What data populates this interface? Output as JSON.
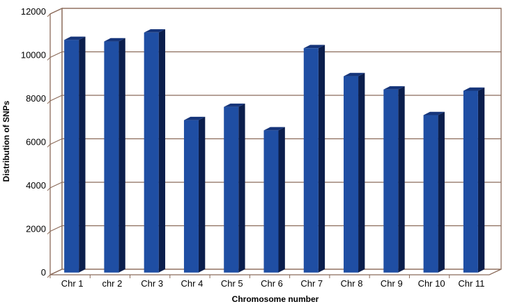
{
  "chart_data": {
    "type": "bar",
    "title": "",
    "xlabel": "Chromosome number",
    "ylabel": "Distribution of SNPs",
    "categories": [
      "Chr 1",
      "chr 2",
      "Chr 3",
      "Chr 4",
      "Chr 5",
      "Chr 6",
      "Chr 7",
      "Chr 8",
      "Chr 9",
      "Chr 10",
      "Chr 11"
    ],
    "values": [
      10650,
      10580,
      10990,
      6960,
      7570,
      6490,
      10270,
      8980,
      8370,
      7190,
      8310
    ],
    "ylim": [
      0,
      12000
    ],
    "yticks": [
      0,
      2000,
      4000,
      6000,
      8000,
      10000,
      12000
    ],
    "grid": true,
    "style": "3d-column",
    "colors": {
      "bar_front": "#1f4ea3",
      "bar_side": "#0b1e4c",
      "bar_top": "#16357a",
      "gridline": "#8b6b5a"
    }
  }
}
